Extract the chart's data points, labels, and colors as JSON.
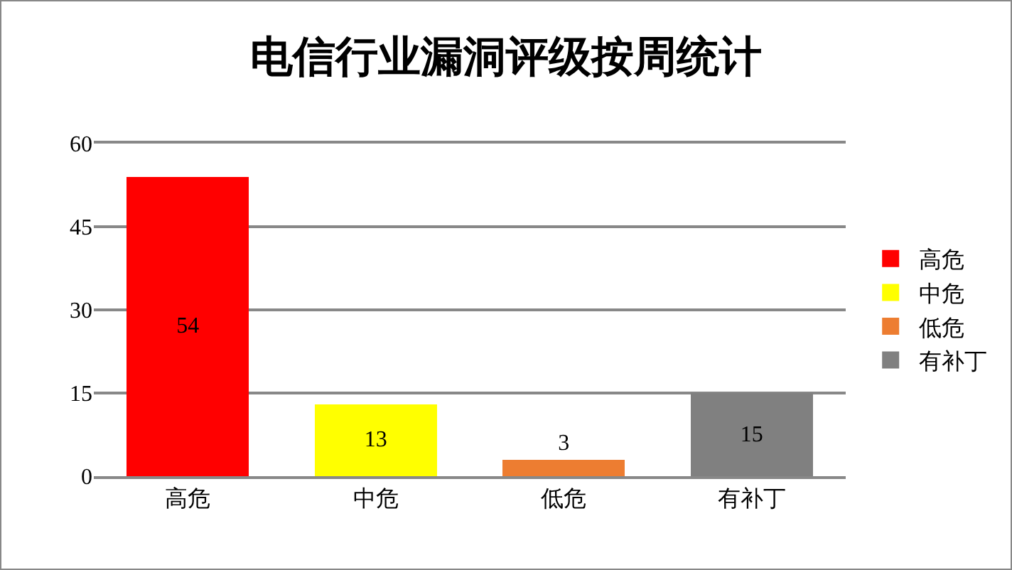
{
  "chart_data": {
    "type": "bar",
    "title": "电信行业漏洞评级按周统计",
    "categories": [
      "高危",
      "中危",
      "低危",
      "有补丁"
    ],
    "stacked": true,
    "series": [
      {
        "name": "高危",
        "color": "#ff0000",
        "values": [
          54,
          null,
          null,
          null
        ]
      },
      {
        "name": "中危",
        "color": "#ffff00",
        "values": [
          null,
          13,
          null,
          null
        ]
      },
      {
        "name": "低危",
        "color": "#ed7d31",
        "values": [
          null,
          null,
          3,
          null
        ]
      },
      {
        "name": "有补丁",
        "color": "#808080",
        "values": [
          null,
          null,
          null,
          15
        ]
      }
    ],
    "ylim": [
      0,
      60
    ],
    "yticks": [
      0,
      15,
      30,
      45,
      60
    ],
    "grid": "y",
    "legend": "right",
    "data_labels": true
  }
}
